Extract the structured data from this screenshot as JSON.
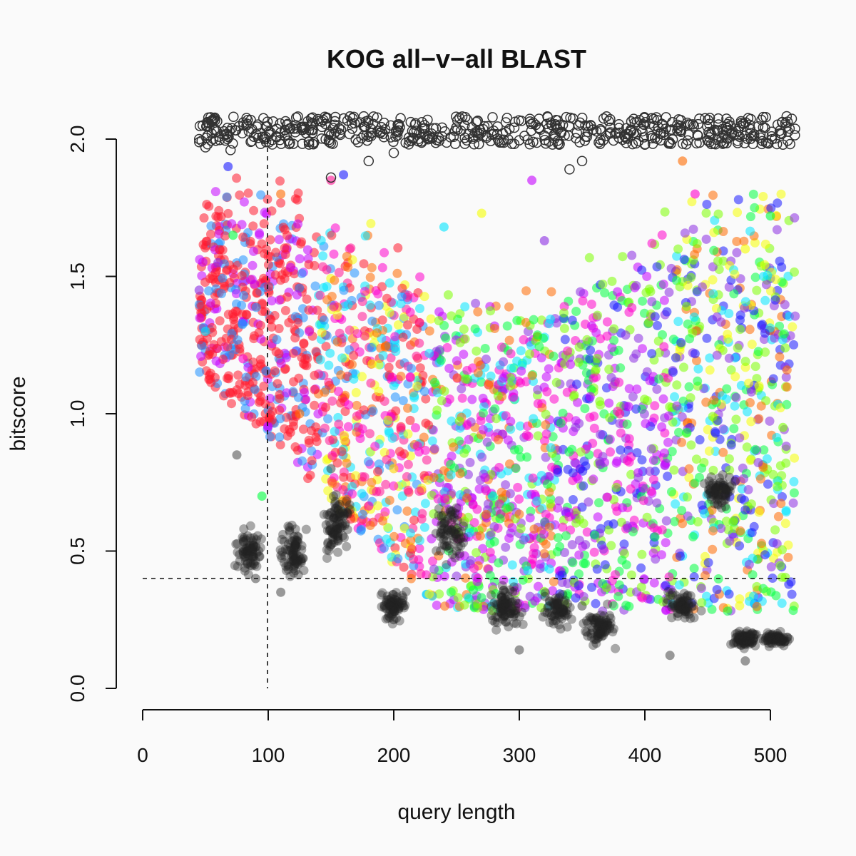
{
  "chart_data": {
    "type": "scatter",
    "title": "KOG all−v−all BLAST",
    "xlabel": "query length",
    "ylabel": "bitscore",
    "xlim": [
      0,
      520
    ],
    "ylim": [
      0,
      2.08
    ],
    "x_ticks": [
      "0",
      "100",
      "200",
      "300",
      "400",
      "500"
    ],
    "y_ticks": [
      "0.0",
      "0.5",
      "1.0",
      "1.5",
      "2.0"
    ],
    "grid": false,
    "reference_lines": {
      "vertical_x": 100,
      "horizontal_y": 0.4
    },
    "series": [
      {
        "style": "open black circles (values at or above 2.0, clipped at top)",
        "color": "#333333",
        "x_range": [
          45,
          520
        ],
        "y_range": [
          1.85,
          2.08
        ],
        "approx_points": [
          [
            45,
            2.0
          ],
          [
            50,
            1.97
          ],
          [
            55,
            2.02
          ],
          [
            70,
            1.96
          ],
          [
            150,
            1.86
          ],
          [
            180,
            1.92
          ],
          [
            200,
            1.95
          ],
          [
            230,
            2.02
          ],
          [
            340,
            1.89
          ],
          [
            350,
            1.92
          ],
          [
            400,
            1.98
          ],
          [
            510,
            1.98
          ]
        ]
      },
      {
        "style": "filled semi-transparent circles coloured by KOG group (red → orange → yellow → green → cyan → blue → violet → magenta)",
        "colors": [
          "#ff1a2e",
          "#ff6a00",
          "#ffd500",
          "#f5ff00",
          "#7cff00",
          "#00ff40",
          "#00e5ff",
          "#1e90ff",
          "#1a1aff",
          "#8a2be2",
          "#c400ff",
          "#ff00cc",
          "#ff1493"
        ],
        "x_range": [
          45,
          520
        ],
        "y_range": [
          0.25,
          1.92
        ],
        "approx_points": [
          [
            45,
            1.45
          ],
          [
            50,
            1.3
          ],
          [
            60,
            1.55
          ],
          [
            68,
            1.9
          ],
          [
            72,
            1.65
          ],
          [
            80,
            1.2
          ],
          [
            95,
            0.7
          ],
          [
            110,
            1.8
          ],
          [
            125,
            1.0
          ],
          [
            150,
            1.85
          ],
          [
            160,
            1.87
          ],
          [
            200,
            0.8
          ],
          [
            240,
            1.68
          ],
          [
            270,
            1.73
          ],
          [
            310,
            1.85
          ],
          [
            320,
            1.63
          ],
          [
            380,
            1.0
          ],
          [
            430,
            1.92
          ],
          [
            440,
            1.8
          ],
          [
            480,
            1.6
          ],
          [
            500,
            1.72
          ],
          [
            510,
            0.95
          ]
        ]
      },
      {
        "style": "filled semi-transparent black circles (low-score hits)",
        "color": "#222222",
        "x_range": [
          75,
          520
        ],
        "y_range": [
          0.08,
          0.86
        ],
        "approx_points": [
          [
            75,
            0.85
          ],
          [
            80,
            0.5
          ],
          [
            90,
            0.4
          ],
          [
            110,
            0.35
          ],
          [
            150,
            0.8
          ],
          [
            200,
            0.25
          ],
          [
            240,
            0.6
          ],
          [
            300,
            0.14
          ],
          [
            350,
            0.3
          ],
          [
            420,
            0.12
          ],
          [
            460,
            0.75
          ],
          [
            480,
            0.1
          ],
          [
            520,
            0.08
          ]
        ]
      }
    ]
  }
}
